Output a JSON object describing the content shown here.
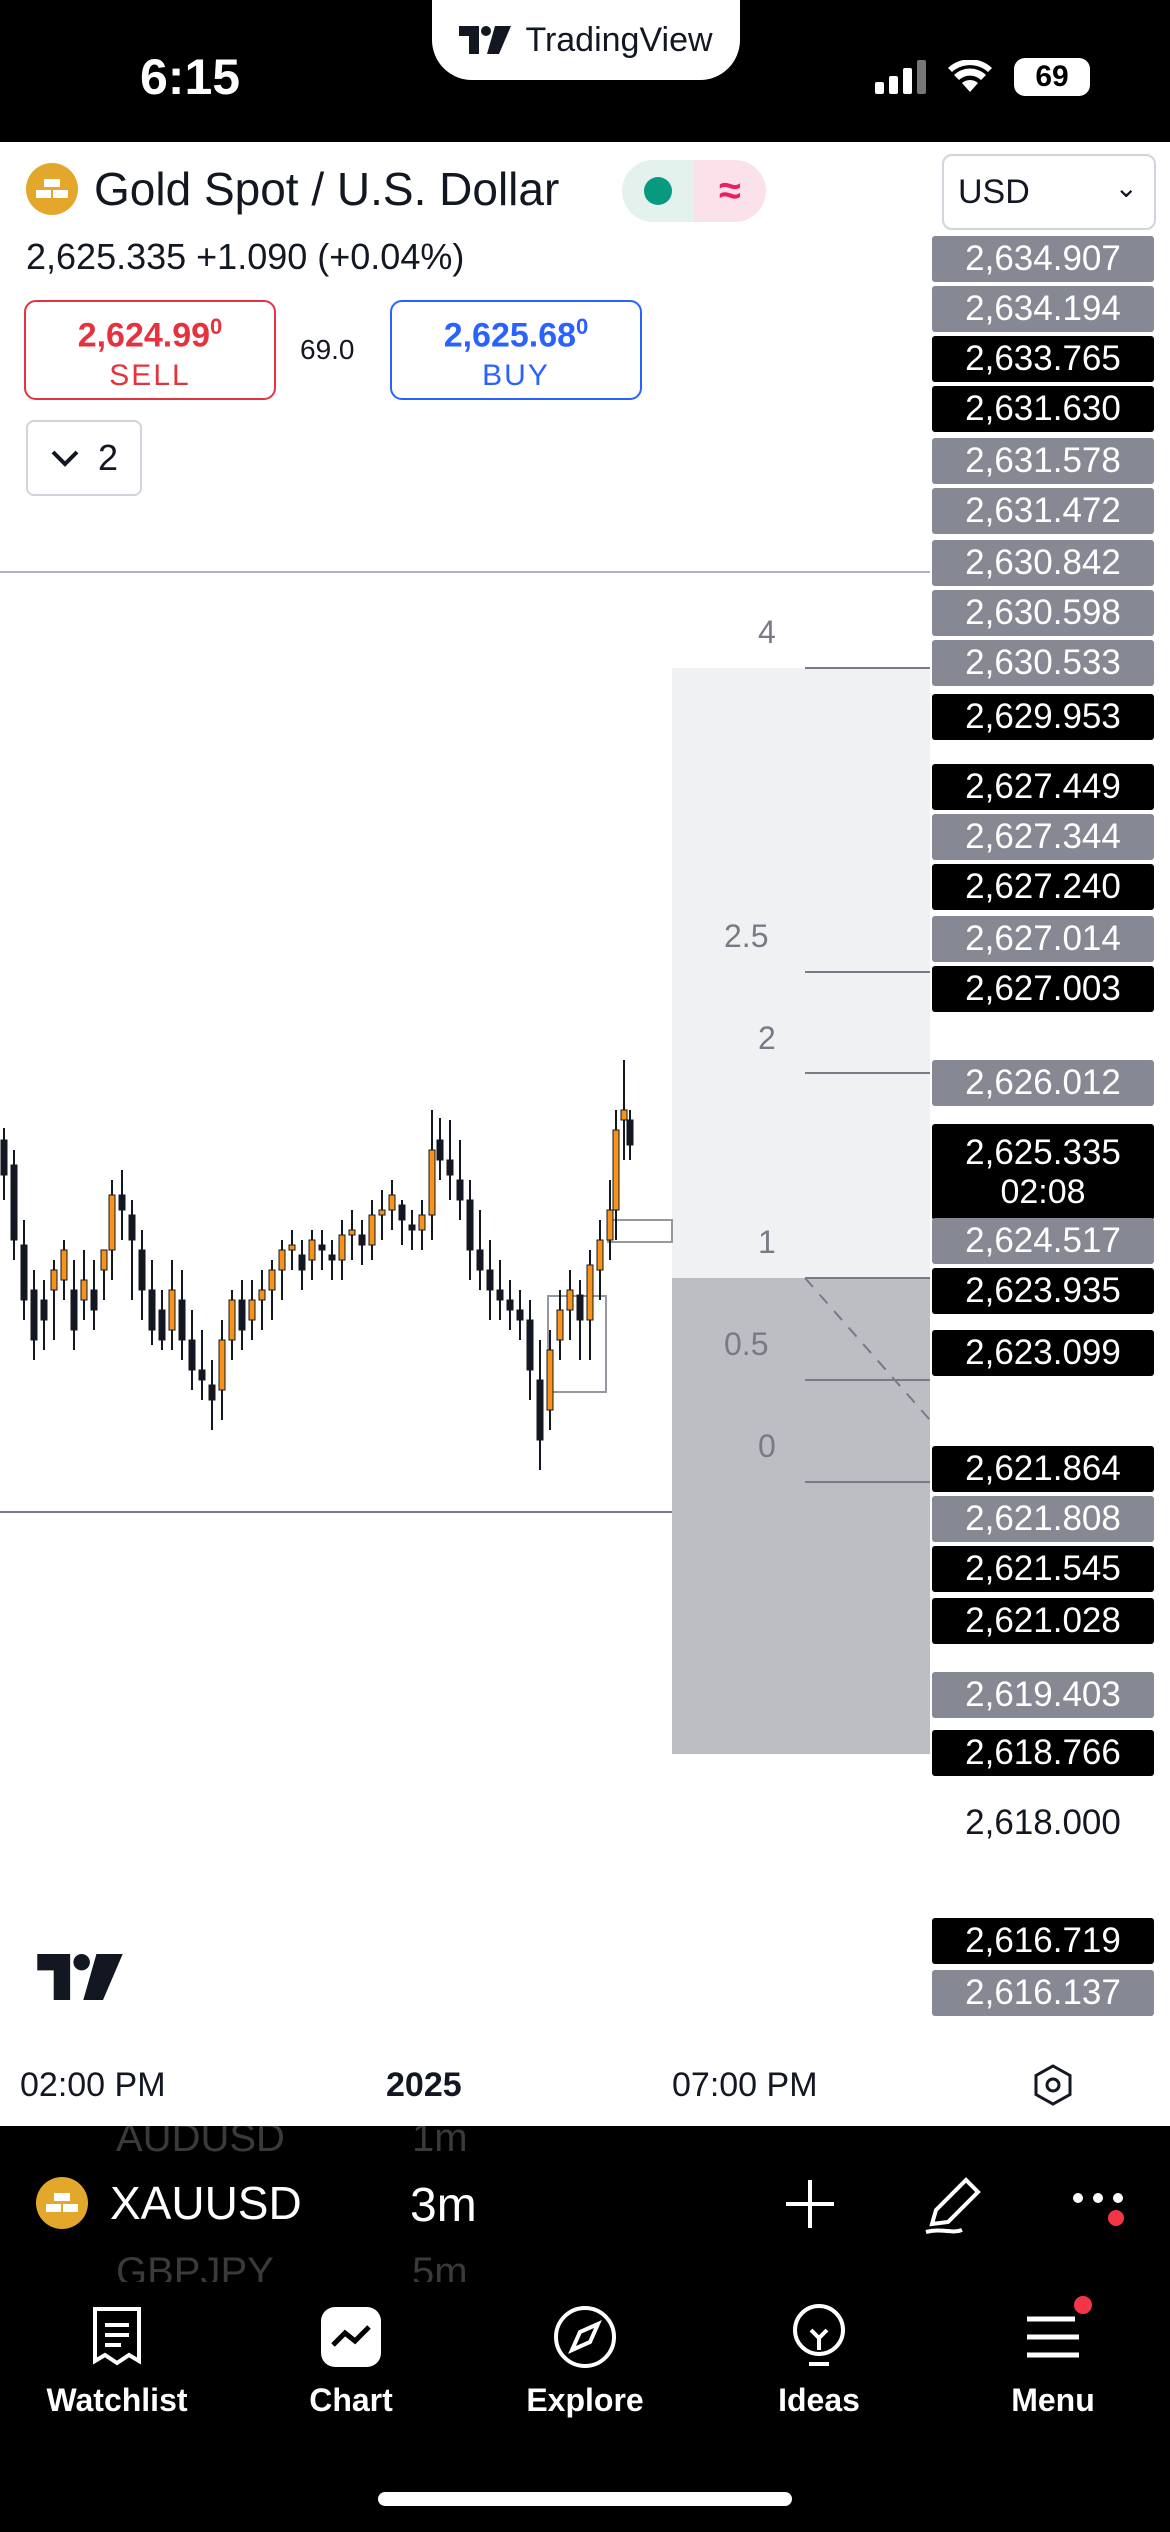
{
  "status_bar": {
    "time": "6:15",
    "app_badge": "TradingView",
    "battery": "69"
  },
  "header": {
    "symbol_name": "Gold Spot / U.S. Dollar",
    "market_status_icon": "market-open-dot",
    "delayed_icon": "≈",
    "currency": "USD",
    "currency_chevron": "⌄",
    "price_line": "2,625.335  +1.090 (+0.04%)",
    "sell": {
      "price_main": "2,624.99",
      "price_sup": "0",
      "label": "SELL"
    },
    "buy": {
      "price_main": "2,625.68",
      "price_sup": "0",
      "label": "BUY"
    },
    "spread": "69.0",
    "indicators_count": "2"
  },
  "price_scale": {
    "labels": [
      {
        "text": "2,634.907",
        "style": "gray"
      },
      {
        "text": "2,634.194",
        "style": "gray"
      },
      {
        "text": "2,633.765",
        "style": "black"
      },
      {
        "text": "2,631.630",
        "style": "black"
      },
      {
        "text": "2,631.578",
        "style": "gray"
      },
      {
        "text": "2,631.472",
        "style": "gray"
      },
      {
        "text": "2,630.842",
        "style": "gray"
      },
      {
        "text": "2,630.598",
        "style": "gray"
      },
      {
        "text": "2,630.533",
        "style": "gray"
      },
      {
        "text": "2,629.953",
        "style": "black"
      },
      {
        "text": "2,627.449",
        "style": "black"
      },
      {
        "text": "2,627.344",
        "style": "gray"
      },
      {
        "text": "2,627.240",
        "style": "black"
      },
      {
        "text": "2,627.014",
        "style": "gray"
      },
      {
        "text": "2,627.003",
        "style": "black"
      },
      {
        "text": "2,626.012",
        "style": "gray"
      },
      {
        "text": "2,625.335",
        "style": "black",
        "sub": "02:08"
      },
      {
        "text": "2,624.517",
        "style": "gray"
      },
      {
        "text": "2,623.935",
        "style": "black"
      },
      {
        "text": "2,623.099",
        "style": "black"
      },
      {
        "text": "2,621.864",
        "style": "black"
      },
      {
        "text": "2,621.808",
        "style": "gray"
      },
      {
        "text": "2,621.545",
        "style": "black"
      },
      {
        "text": "2,621.028",
        "style": "black"
      },
      {
        "text": "2,619.403",
        "style": "gray"
      },
      {
        "text": "2,618.766",
        "style": "black"
      },
      {
        "text": "2,618.000",
        "style": "plain"
      },
      {
        "text": "2,616.719",
        "style": "black"
      },
      {
        "text": "2,616.137",
        "style": "gray"
      }
    ]
  },
  "fib_levels": [
    "4",
    "2.5",
    "2",
    "1",
    "0.5",
    "0"
  ],
  "time_axis": {
    "labels": [
      "02:00 PM",
      "2025",
      "07:00 PM"
    ]
  },
  "symbol_bar": {
    "symbol": "XAUUSD",
    "interval": "3m",
    "ghost_above": [
      "AUDUSD",
      "1m"
    ],
    "ghost_below": [
      "GBPJPY",
      "5m"
    ]
  },
  "nav": {
    "items": [
      {
        "label": "Watchlist",
        "icon": "watchlist-icon"
      },
      {
        "label": "Chart",
        "icon": "chart-icon"
      },
      {
        "label": "Explore",
        "icon": "compass-icon"
      },
      {
        "label": "Ideas",
        "icon": "lightbulb-icon"
      },
      {
        "label": "Menu",
        "icon": "hamburger-icon"
      }
    ]
  },
  "colors": {
    "sell": "#e5323f",
    "buy": "#2962ff",
    "candle_up": "#f7931a",
    "candle_down": "#131722",
    "scale_gray": "#868993",
    "gold": "#e3a82b",
    "badge_red": "#f23645"
  }
}
